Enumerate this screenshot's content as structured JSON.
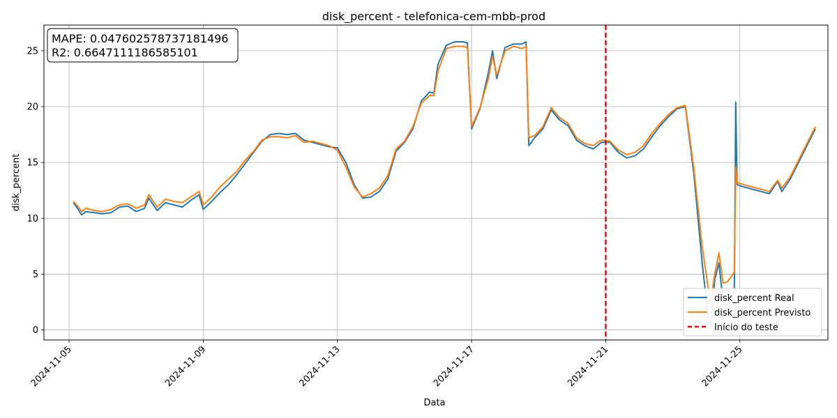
{
  "chart_data": {
    "type": "line",
    "title": "disk_percent - telefonica-cem-mbb-prod",
    "xlabel": "Data",
    "ylabel": "disk_percent",
    "x_ticks": [
      "2024-11-05",
      "2024-11-09",
      "2024-11-13",
      "2024-11-17",
      "2024-11-21",
      "2024-11-25"
    ],
    "y_ticks": [
      0,
      5,
      10,
      15,
      20,
      25
    ],
    "xlim": [
      "2024-11-04T06:00",
      "2024-11-27T15:00"
    ],
    "ylim": [
      -0.9,
      27.3
    ],
    "grid": true,
    "legend_position": "lower-right",
    "annotation_lines": [
      "MAPE: 0.047602578737181496",
      "R2: 0.6647111186585101"
    ],
    "test_start": {
      "x": "2024-11-21T00:00",
      "label": "Início do teste",
      "color": "#ff0000"
    },
    "series": [
      {
        "name": "disk_percent Real",
        "color": "#1f77b4",
        "points": [
          [
            "2024-11-05T03:00",
            11.4
          ],
          [
            "2024-11-05T06:00",
            10.9
          ],
          [
            "2024-11-05T09:00",
            10.3
          ],
          [
            "2024-11-05T12:00",
            10.6
          ],
          [
            "2024-11-05T18:00",
            10.5
          ],
          [
            "2024-11-06T00:00",
            10.4
          ],
          [
            "2024-11-06T06:00",
            10.5
          ],
          [
            "2024-11-06T12:00",
            11.0
          ],
          [
            "2024-11-06T18:00",
            11.1
          ],
          [
            "2024-11-07T00:00",
            10.6
          ],
          [
            "2024-11-07T06:00",
            10.9
          ],
          [
            "2024-11-07T09:00",
            11.8
          ],
          [
            "2024-11-07T15:00",
            10.7
          ],
          [
            "2024-11-07T21:00",
            11.4
          ],
          [
            "2024-11-08T03:00",
            11.2
          ],
          [
            "2024-11-08T09:00",
            11.0
          ],
          [
            "2024-11-08T15:00",
            11.6
          ],
          [
            "2024-11-08T21:00",
            12.1
          ],
          [
            "2024-11-09T00:00",
            10.8
          ],
          [
            "2024-11-09T06:00",
            11.5
          ],
          [
            "2024-11-09T12:00",
            12.3
          ],
          [
            "2024-11-09T18:00",
            13.0
          ],
          [
            "2024-11-10T00:00",
            13.9
          ],
          [
            "2024-11-10T06:00",
            14.9
          ],
          [
            "2024-11-10T12:00",
            15.9
          ],
          [
            "2024-11-10T18:00",
            16.9
          ],
          [
            "2024-11-11T00:00",
            17.5
          ],
          [
            "2024-11-11T06:00",
            17.6
          ],
          [
            "2024-11-11T12:00",
            17.5
          ],
          [
            "2024-11-11T18:00",
            17.6
          ],
          [
            "2024-11-12T00:00",
            17.0
          ],
          [
            "2024-11-12T06:00",
            16.8
          ],
          [
            "2024-11-12T12:00",
            16.6
          ],
          [
            "2024-11-12T18:00",
            16.4
          ],
          [
            "2024-11-13T00:00",
            16.3
          ],
          [
            "2024-11-13T06:00",
            15.0
          ],
          [
            "2024-11-13T12:00",
            13.0
          ],
          [
            "2024-11-13T18:00",
            11.8
          ],
          [
            "2024-11-14T00:00",
            11.9
          ],
          [
            "2024-11-14T06:00",
            12.4
          ],
          [
            "2024-11-14T12:00",
            13.5
          ],
          [
            "2024-11-14T18:00",
            16.0
          ],
          [
            "2024-11-15T00:00",
            16.8
          ],
          [
            "2024-11-15T06:00",
            18.0
          ],
          [
            "2024-11-15T12:00",
            20.5
          ],
          [
            "2024-11-15T18:00",
            21.3
          ],
          [
            "2024-11-15T21:00",
            21.2
          ],
          [
            "2024-11-16T00:00",
            23.8
          ],
          [
            "2024-11-16T06:00",
            25.5
          ],
          [
            "2024-11-16T12:00",
            25.8
          ],
          [
            "2024-11-16T18:00",
            25.8
          ],
          [
            "2024-11-16T21:00",
            25.7
          ],
          [
            "2024-11-17T00:00",
            18.0
          ],
          [
            "2024-11-17T06:00",
            19.8
          ],
          [
            "2024-11-17T12:00",
            23.0
          ],
          [
            "2024-11-17T15:00",
            25.0
          ],
          [
            "2024-11-17T18:00",
            22.5
          ],
          [
            "2024-11-18T00:00",
            25.3
          ],
          [
            "2024-11-18T06:00",
            25.6
          ],
          [
            "2024-11-18T12:00",
            25.6
          ],
          [
            "2024-11-18T15:00",
            25.8
          ],
          [
            "2024-11-18T17:00",
            16.5
          ],
          [
            "2024-11-18T21:00",
            17.2
          ],
          [
            "2024-11-19T03:00",
            18.0
          ],
          [
            "2024-11-19T09:00",
            19.7
          ],
          [
            "2024-11-19T15:00",
            18.8
          ],
          [
            "2024-11-19T21:00",
            18.3
          ],
          [
            "2024-11-20T03:00",
            17.0
          ],
          [
            "2024-11-20T09:00",
            16.5
          ],
          [
            "2024-11-20T15:00",
            16.2
          ],
          [
            "2024-11-20T21:00",
            16.8
          ],
          [
            "2024-11-21T03:00",
            16.8
          ],
          [
            "2024-11-21T09:00",
            15.9
          ],
          [
            "2024-11-21T15:00",
            15.4
          ],
          [
            "2024-11-21T21:00",
            15.6
          ],
          [
            "2024-11-22T03:00",
            16.2
          ],
          [
            "2024-11-22T09:00",
            17.3
          ],
          [
            "2024-11-22T15:00",
            18.3
          ],
          [
            "2024-11-22T21:00",
            19.1
          ],
          [
            "2024-11-23T03:00",
            19.8
          ],
          [
            "2024-11-23T09:00",
            20.0
          ],
          [
            "2024-11-23T15:00",
            14.0
          ],
          [
            "2024-11-23T21:00",
            6.0
          ],
          [
            "2024-11-24T01:00",
            1.5
          ],
          [
            "2024-11-24T03:00",
            0.4
          ],
          [
            "2024-11-24T06:00",
            4.5
          ],
          [
            "2024-11-24T09:00",
            6.0
          ],
          [
            "2024-11-24T12:00",
            2.5
          ],
          [
            "2024-11-24T15:00",
            2.2
          ],
          [
            "2024-11-24T18:00",
            3.0
          ],
          [
            "2024-11-24T20:00",
            3.5
          ],
          [
            "2024-11-24T21:00",
            20.4
          ],
          [
            "2024-11-24T22:00",
            13.0
          ],
          [
            "2024-11-25T03:00",
            12.8
          ],
          [
            "2024-11-25T09:00",
            12.6
          ],
          [
            "2024-11-25T15:00",
            12.4
          ],
          [
            "2024-11-25T21:00",
            12.2
          ],
          [
            "2024-11-26T03:00",
            13.3
          ],
          [
            "2024-11-26T06:00",
            12.4
          ],
          [
            "2024-11-26T12:00",
            13.5
          ],
          [
            "2024-11-26T18:00",
            15.0
          ],
          [
            "2024-11-27T00:00",
            16.5
          ],
          [
            "2024-11-27T06:00",
            18.0
          ]
        ]
      },
      {
        "name": "disk_percent Previsto",
        "color": "#ff7f0e",
        "points": [
          [
            "2024-11-05T03:00",
            11.5
          ],
          [
            "2024-11-05T06:00",
            11.1
          ],
          [
            "2024-11-05T09:00",
            10.6
          ],
          [
            "2024-11-05T12:00",
            10.9
          ],
          [
            "2024-11-05T18:00",
            10.7
          ],
          [
            "2024-11-06T00:00",
            10.6
          ],
          [
            "2024-11-06T06:00",
            10.8
          ],
          [
            "2024-11-06T12:00",
            11.2
          ],
          [
            "2024-11-06T18:00",
            11.3
          ],
          [
            "2024-11-07T00:00",
            10.9
          ],
          [
            "2024-11-07T06:00",
            11.2
          ],
          [
            "2024-11-07T09:00",
            12.1
          ],
          [
            "2024-11-07T15:00",
            11.0
          ],
          [
            "2024-11-07T21:00",
            11.7
          ],
          [
            "2024-11-08T03:00",
            11.5
          ],
          [
            "2024-11-08T09:00",
            11.4
          ],
          [
            "2024-11-08T15:00",
            11.9
          ],
          [
            "2024-11-08T21:00",
            12.4
          ],
          [
            "2024-11-09T00:00",
            11.2
          ],
          [
            "2024-11-09T06:00",
            11.9
          ],
          [
            "2024-11-09T12:00",
            12.8
          ],
          [
            "2024-11-09T18:00",
            13.5
          ],
          [
            "2024-11-10T00:00",
            14.2
          ],
          [
            "2024-11-10T06:00",
            15.2
          ],
          [
            "2024-11-10T12:00",
            16.0
          ],
          [
            "2024-11-10T18:00",
            17.0
          ],
          [
            "2024-11-11T00:00",
            17.3
          ],
          [
            "2024-11-11T06:00",
            17.3
          ],
          [
            "2024-11-11T12:00",
            17.2
          ],
          [
            "2024-11-11T18:00",
            17.4
          ],
          [
            "2024-11-12T00:00",
            16.8
          ],
          [
            "2024-11-12T06:00",
            16.9
          ],
          [
            "2024-11-12T12:00",
            16.7
          ],
          [
            "2024-11-12T18:00",
            16.5
          ],
          [
            "2024-11-13T00:00",
            16.1
          ],
          [
            "2024-11-13T06:00",
            14.6
          ],
          [
            "2024-11-13T12:00",
            12.8
          ],
          [
            "2024-11-13T18:00",
            11.9
          ],
          [
            "2024-11-14T00:00",
            12.2
          ],
          [
            "2024-11-14T06:00",
            12.7
          ],
          [
            "2024-11-14T12:00",
            13.8
          ],
          [
            "2024-11-14T18:00",
            16.2
          ],
          [
            "2024-11-15T00:00",
            16.9
          ],
          [
            "2024-11-15T06:00",
            18.2
          ],
          [
            "2024-11-15T12:00",
            20.3
          ],
          [
            "2024-11-15T18:00",
            21.0
          ],
          [
            "2024-11-15T21:00",
            21.0
          ],
          [
            "2024-11-16T00:00",
            23.2
          ],
          [
            "2024-11-16T06:00",
            25.2
          ],
          [
            "2024-11-16T12:00",
            25.4
          ],
          [
            "2024-11-16T18:00",
            25.4
          ],
          [
            "2024-11-16T21:00",
            25.3
          ],
          [
            "2024-11-17T00:00",
            18.2
          ],
          [
            "2024-11-17T06:00",
            19.9
          ],
          [
            "2024-11-17T12:00",
            22.5
          ],
          [
            "2024-11-17T15:00",
            24.5
          ],
          [
            "2024-11-17T18:00",
            22.8
          ],
          [
            "2024-11-18T00:00",
            25.0
          ],
          [
            "2024-11-18T06:00",
            25.4
          ],
          [
            "2024-11-18T12:00",
            25.2
          ],
          [
            "2024-11-18T15:00",
            25.4
          ],
          [
            "2024-11-18T17:00",
            17.2
          ],
          [
            "2024-11-18T21:00",
            17.4
          ],
          [
            "2024-11-19T03:00",
            18.2
          ],
          [
            "2024-11-19T09:00",
            19.9
          ],
          [
            "2024-11-19T15:00",
            19.0
          ],
          [
            "2024-11-19T21:00",
            18.5
          ],
          [
            "2024-11-20T03:00",
            17.2
          ],
          [
            "2024-11-20T09:00",
            16.7
          ],
          [
            "2024-11-20T15:00",
            16.5
          ],
          [
            "2024-11-20T21:00",
            17.0
          ],
          [
            "2024-11-21T03:00",
            16.9
          ],
          [
            "2024-11-21T09:00",
            16.1
          ],
          [
            "2024-11-21T15:00",
            15.7
          ],
          [
            "2024-11-21T21:00",
            15.9
          ],
          [
            "2024-11-22T03:00",
            16.5
          ],
          [
            "2024-11-22T09:00",
            17.6
          ],
          [
            "2024-11-22T15:00",
            18.5
          ],
          [
            "2024-11-22T21:00",
            19.3
          ],
          [
            "2024-11-23T03:00",
            19.9
          ],
          [
            "2024-11-23T09:00",
            20.1
          ],
          [
            "2024-11-23T15:00",
            14.5
          ],
          [
            "2024-11-23T21:00",
            7.5
          ],
          [
            "2024-11-24T01:00",
            4.0
          ],
          [
            "2024-11-24T03:00",
            2.4
          ],
          [
            "2024-11-24T06:00",
            5.0
          ],
          [
            "2024-11-24T09:00",
            6.9
          ],
          [
            "2024-11-24T12:00",
            4.2
          ],
          [
            "2024-11-24T15:00",
            4.3
          ],
          [
            "2024-11-24T18:00",
            4.8
          ],
          [
            "2024-11-24T20:00",
            5.2
          ],
          [
            "2024-11-24T21:00",
            14.6
          ],
          [
            "2024-11-24T22:00",
            13.2
          ],
          [
            "2024-11-25T03:00",
            13.0
          ],
          [
            "2024-11-25T09:00",
            12.8
          ],
          [
            "2024-11-25T15:00",
            12.6
          ],
          [
            "2024-11-25T21:00",
            12.4
          ],
          [
            "2024-11-26T03:00",
            13.4
          ],
          [
            "2024-11-26T06:00",
            12.7
          ],
          [
            "2024-11-26T12:00",
            13.7
          ],
          [
            "2024-11-26T18:00",
            15.2
          ],
          [
            "2024-11-27T00:00",
            16.7
          ],
          [
            "2024-11-27T06:00",
            18.2
          ]
        ]
      }
    ]
  }
}
